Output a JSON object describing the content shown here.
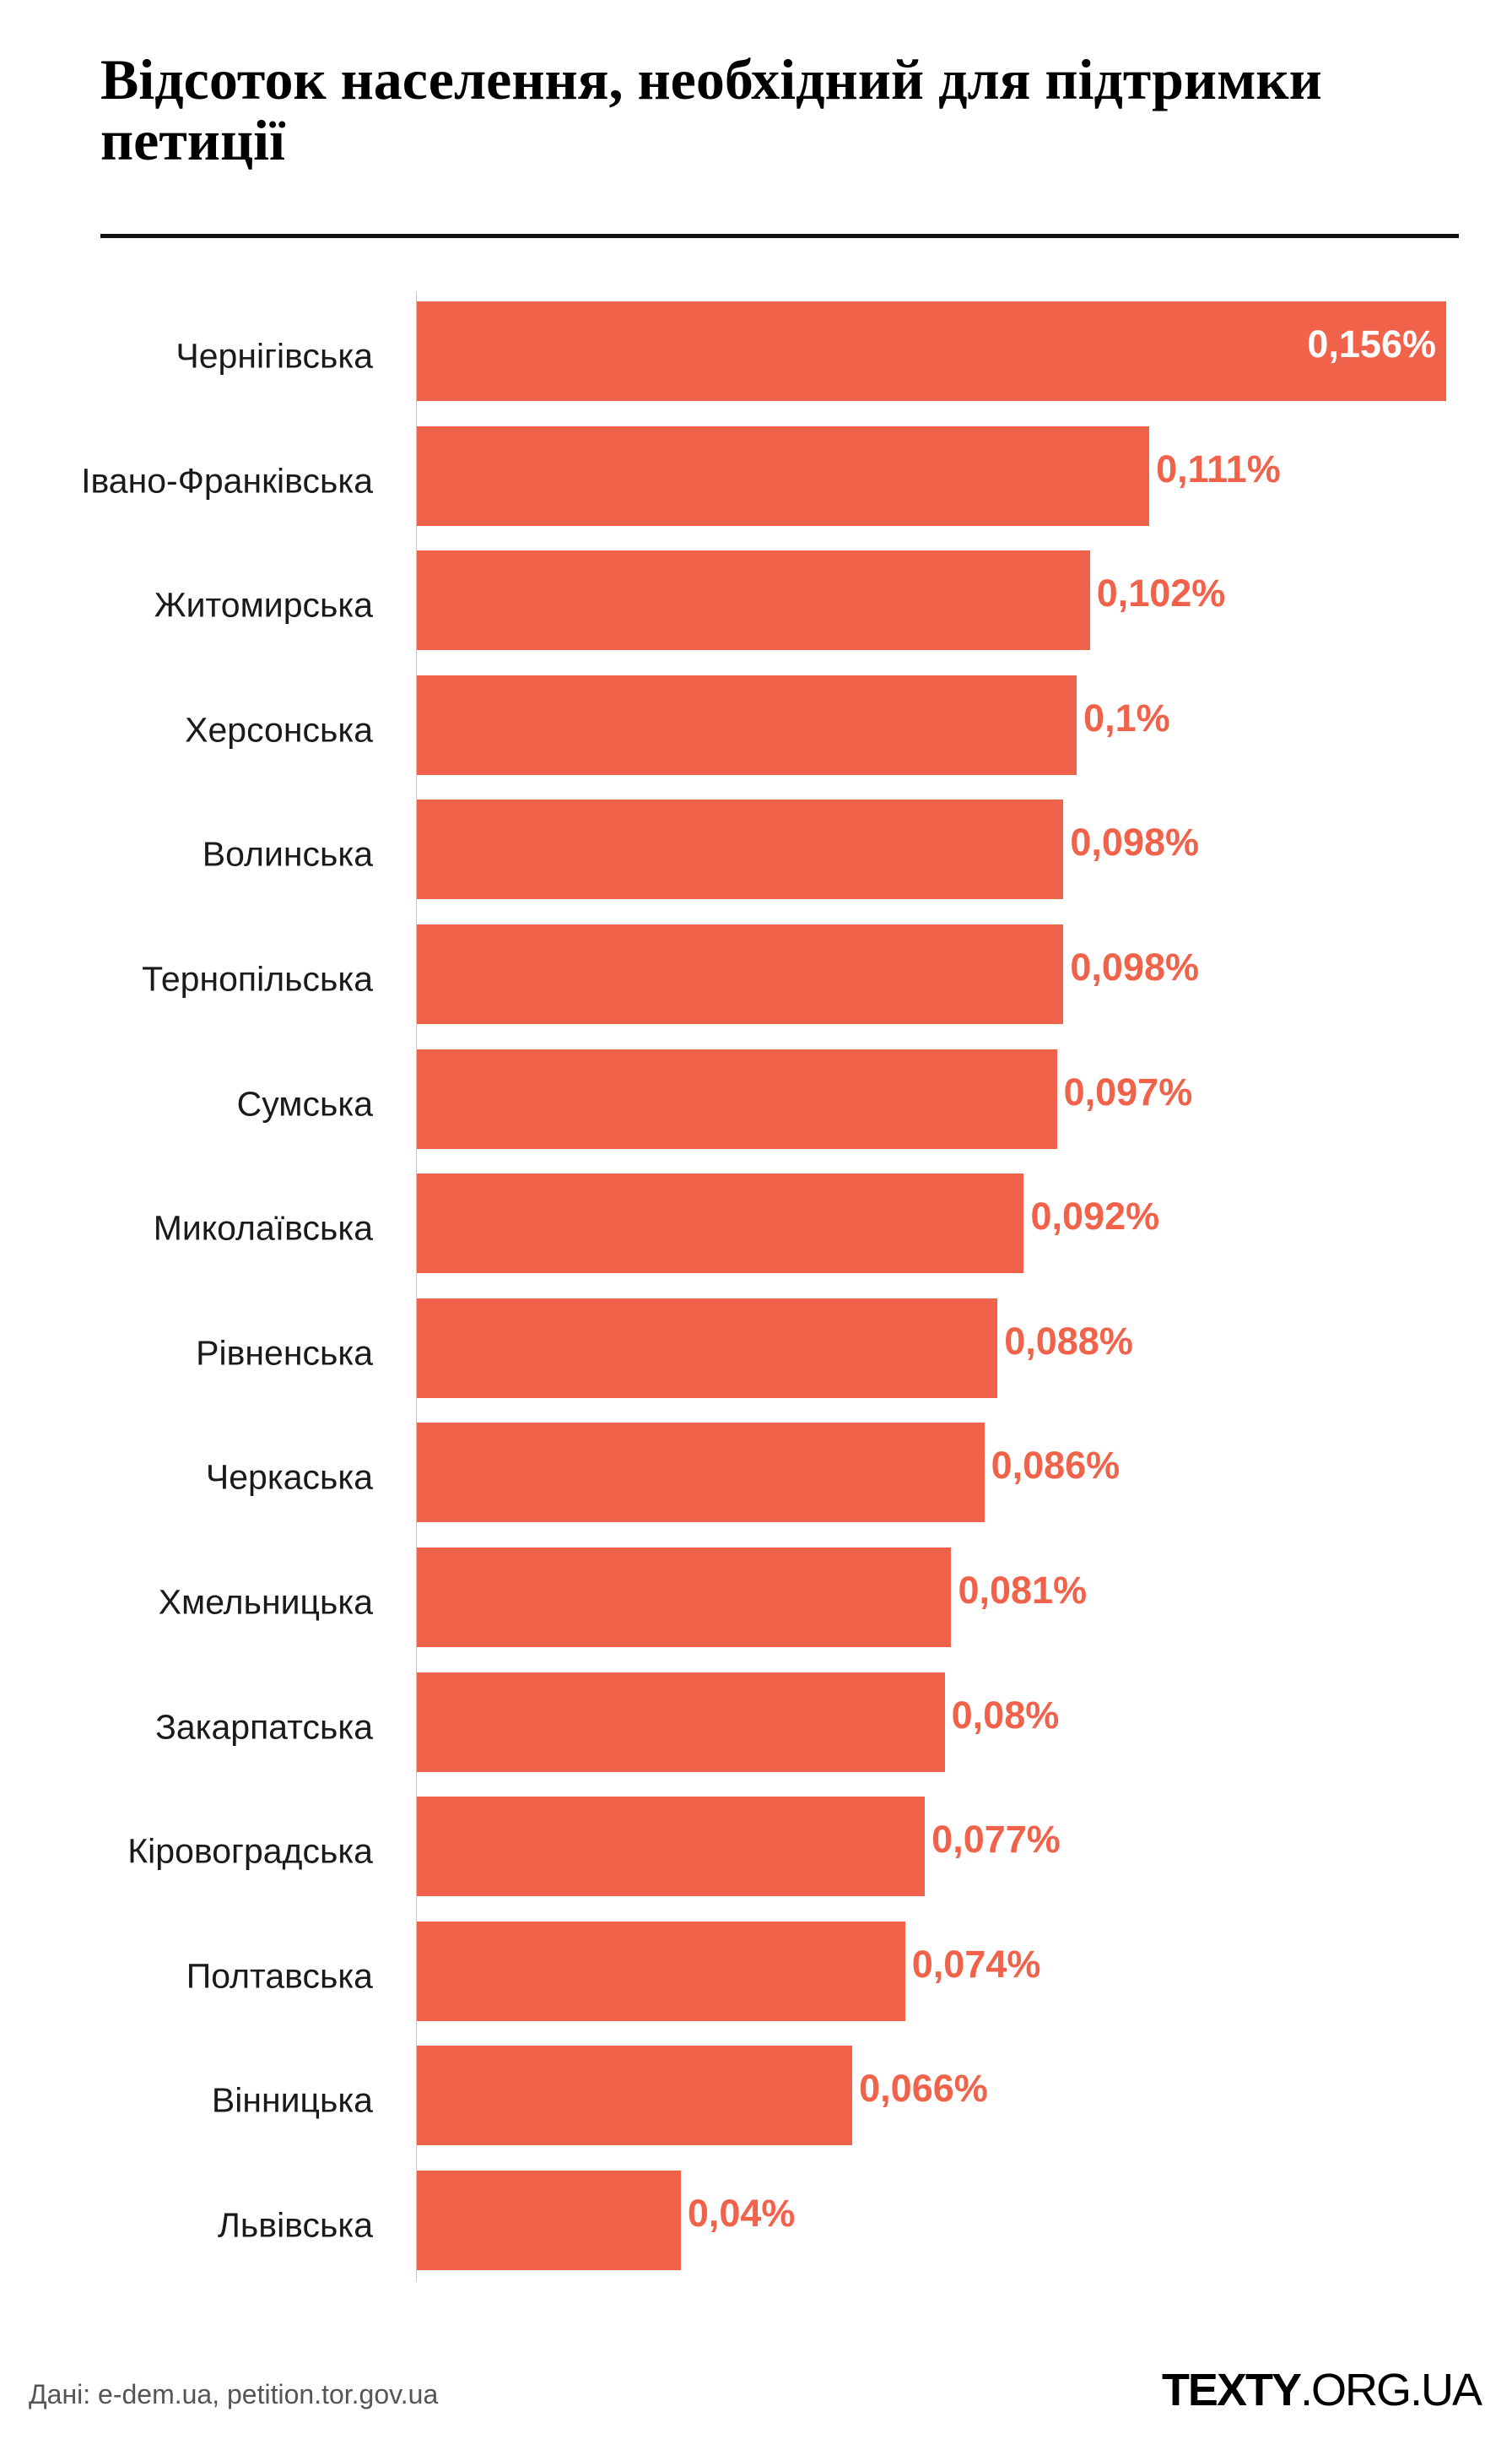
{
  "title": "Відсоток населення, необхідний для підтримки петиції",
  "chart_data": {
    "type": "bar",
    "orientation": "horizontal",
    "title": "Відсоток населення, необхідний для підтримки петиції",
    "categories": [
      "Чернігівська",
      "Івано-Франківська",
      "Житомирська",
      "Херсонська",
      "Волинська",
      "Тернопільська",
      "Сумська",
      "Миколаївська",
      "Рівненська",
      "Черкаська",
      "Хмельницька",
      "Закарпатська",
      "Кіровоградська",
      "Полтавська",
      "Вінницька",
      "Львівська"
    ],
    "values": [
      0.156,
      0.111,
      0.102,
      0.1,
      0.098,
      0.098,
      0.097,
      0.092,
      0.088,
      0.086,
      0.081,
      0.08,
      0.077,
      0.074,
      0.066,
      0.04
    ],
    "labels": [
      "0,156%",
      "0,111%",
      "0,102%",
      "0,1%",
      "0,098%",
      "0,098%",
      "0,097%",
      "0,092%",
      "0,088%",
      "0,086%",
      "0,081%",
      "0,08%",
      "0,077%",
      "0,074%",
      "0,066%",
      "0,04%"
    ],
    "unit": "%",
    "xlim": [
      0,
      0.156
    ],
    "grid": false,
    "bar_color": "#f06249",
    "label_color": "#f06249"
  },
  "footer": {
    "source": "Дані: e-dem.ua, petition.tor.gov.ua",
    "logo_bold": "TEXTY",
    "logo_rest": ".ORG.UA"
  }
}
